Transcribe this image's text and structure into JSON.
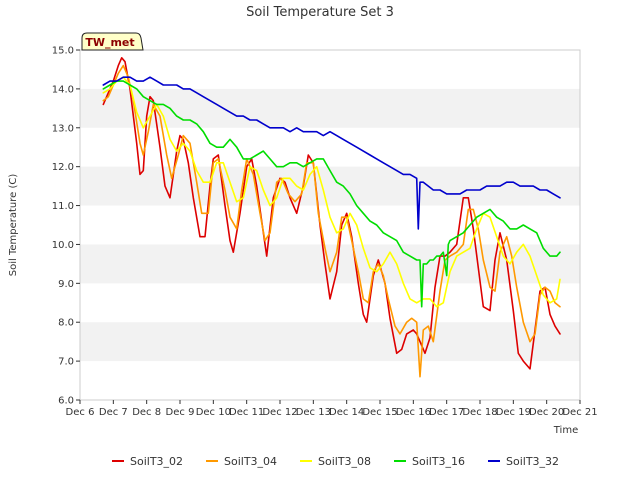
{
  "chart_data": {
    "type": "line",
    "title": "Soil Temperature Set 3",
    "badge": "TW_met",
    "xlabel": "Time",
    "ylabel": "Soil Temperature (C)",
    "xlim": [
      6,
      21
    ],
    "ylim": [
      6.0,
      15.0
    ],
    "x_ticks": [
      6,
      7,
      8,
      9,
      10,
      11,
      12,
      13,
      14,
      15,
      16,
      17,
      18,
      19,
      20,
      21
    ],
    "x_tick_labels": [
      "Dec 6",
      "Dec 7",
      "Dec 8",
      "Dec 9",
      "Dec 10",
      "Dec 11",
      "Dec 12",
      "Dec 13",
      "Dec 14",
      "Dec 15",
      "Dec 16",
      "Dec 17",
      "Dec 18",
      "Dec 19",
      "Dec 20",
      "Dec 21"
    ],
    "y_ticks": [
      6.0,
      7.0,
      8.0,
      9.0,
      10.0,
      11.0,
      12.0,
      13.0,
      14.0,
      15.0
    ],
    "y_tick_labels": [
      "6.0",
      "7.0",
      "8.0",
      "9.0",
      "10.0",
      "11.0",
      "12.0",
      "13.0",
      "14.0",
      "15.0"
    ],
    "grid": "horizontal bands",
    "legend_position": "bottom",
    "series": [
      {
        "name": "SoilT3_02",
        "color": "#dd0000",
        "x": [
          6.7,
          6.85,
          7.0,
          7.15,
          7.25,
          7.35,
          7.5,
          7.7,
          7.8,
          7.9,
          8.0,
          8.1,
          8.2,
          8.4,
          8.55,
          8.7,
          8.9,
          9.0,
          9.1,
          9.25,
          9.4,
          9.6,
          9.75,
          9.9,
          10.0,
          10.15,
          10.35,
          10.5,
          10.6,
          10.8,
          11.0,
          11.15,
          11.3,
          11.45,
          11.6,
          11.8,
          12.0,
          12.15,
          12.3,
          12.5,
          12.7,
          12.85,
          13.0,
          13.2,
          13.35,
          13.5,
          13.7,
          13.85,
          14.0,
          14.15,
          14.35,
          14.5,
          14.6,
          14.8,
          14.95,
          15.15,
          15.3,
          15.5,
          15.65,
          15.8,
          16.0,
          16.1,
          16.25,
          16.35,
          16.5,
          16.65,
          16.8,
          16.95,
          17.1,
          17.3,
          17.5,
          17.65,
          17.8,
          17.95,
          18.1,
          18.3,
          18.45,
          18.6,
          18.8,
          19.0,
          19.15,
          19.3,
          19.5,
          19.65,
          19.8,
          19.95,
          20.1,
          20.25,
          20.4
        ],
        "y": [
          13.6,
          13.9,
          14.2,
          14.6,
          14.8,
          14.7,
          14.0,
          12.6,
          11.8,
          11.9,
          13.3,
          13.8,
          13.7,
          12.5,
          11.5,
          11.2,
          12.4,
          12.8,
          12.7,
          12.1,
          11.2,
          10.2,
          10.2,
          11.5,
          12.2,
          12.3,
          11.0,
          10.1,
          9.8,
          10.8,
          12.0,
          12.2,
          11.5,
          10.6,
          9.7,
          11.2,
          11.7,
          11.6,
          11.2,
          10.8,
          11.5,
          12.3,
          12.1,
          10.5,
          9.5,
          8.6,
          9.3,
          10.5,
          10.8,
          10.2,
          9.0,
          8.2,
          8.0,
          9.2,
          9.6,
          9.0,
          8.1,
          7.2,
          7.3,
          7.7,
          7.8,
          7.7,
          7.4,
          7.2,
          7.6,
          8.9,
          9.7,
          9.7,
          9.8,
          10.0,
          11.2,
          11.2,
          10.4,
          9.4,
          8.4,
          8.3,
          9.6,
          10.3,
          9.6,
          8.3,
          7.2,
          7.0,
          6.8,
          7.8,
          8.8,
          8.9,
          8.2,
          7.9,
          7.7
        ]
      },
      {
        "name": "SoilT3_04",
        "color": "#ff9900",
        "x": [
          6.7,
          6.85,
          7.0,
          7.15,
          7.3,
          7.45,
          7.6,
          7.8,
          7.9,
          8.05,
          8.2,
          8.4,
          8.6,
          8.75,
          8.95,
          9.1,
          9.3,
          9.5,
          9.65,
          9.85,
          10.0,
          10.15,
          10.35,
          10.5,
          10.7,
          10.85,
          11.0,
          11.2,
          11.4,
          11.55,
          11.7,
          11.9,
          12.05,
          12.25,
          12.45,
          12.65,
          12.8,
          13.0,
          13.15,
          13.35,
          13.5,
          13.7,
          13.85,
          14.0,
          14.15,
          14.35,
          14.5,
          14.65,
          14.8,
          14.95,
          15.1,
          15.25,
          15.45,
          15.6,
          15.8,
          15.95,
          16.1,
          16.2,
          16.3,
          16.45,
          16.6,
          16.8,
          16.95,
          17.1,
          17.3,
          17.5,
          17.65,
          17.8,
          17.95,
          18.1,
          18.3,
          18.45,
          18.6,
          18.8,
          18.95,
          19.1,
          19.3,
          19.5,
          19.65,
          19.8,
          19.95,
          20.1,
          20.25,
          20.4
        ],
        "y": [
          13.7,
          13.8,
          14.1,
          14.4,
          14.6,
          14.3,
          13.7,
          12.6,
          12.3,
          12.9,
          13.6,
          13.3,
          12.3,
          11.7,
          12.3,
          12.8,
          12.6,
          11.6,
          10.8,
          10.8,
          12.1,
          12.2,
          11.4,
          10.7,
          10.4,
          11.4,
          12.2,
          11.8,
          10.8,
          10.1,
          10.3,
          11.6,
          11.7,
          11.3,
          11.1,
          11.3,
          12.1,
          12.1,
          10.8,
          9.9,
          9.3,
          9.8,
          10.7,
          10.7,
          10.1,
          9.3,
          8.6,
          8.5,
          9.3,
          9.5,
          9.2,
          8.6,
          7.9,
          7.7,
          8.0,
          8.1,
          8.0,
          6.6,
          7.8,
          7.9,
          7.5,
          8.8,
          9.6,
          9.7,
          9.8,
          10.0,
          10.9,
          10.9,
          10.4,
          9.6,
          8.9,
          8.8,
          9.8,
          10.2,
          9.7,
          8.9,
          8.0,
          7.5,
          7.7,
          8.7,
          8.9,
          8.8,
          8.5,
          8.4
        ]
      },
      {
        "name": "SoilT3_08",
        "color": "#ffff00",
        "x": [
          6.7,
          6.9,
          7.1,
          7.3,
          7.5,
          7.7,
          7.9,
          8.1,
          8.3,
          8.5,
          8.7,
          8.9,
          9.1,
          9.3,
          9.5,
          9.7,
          9.9,
          10.1,
          10.3,
          10.5,
          10.7,
          10.9,
          11.1,
          11.3,
          11.5,
          11.7,
          11.9,
          12.1,
          12.3,
          12.5,
          12.7,
          12.9,
          13.1,
          13.3,
          13.5,
          13.7,
          13.9,
          14.1,
          14.3,
          14.5,
          14.7,
          14.9,
          15.1,
          15.3,
          15.5,
          15.7,
          15.9,
          16.1,
          16.3,
          16.5,
          16.7,
          16.9,
          17.1,
          17.3,
          17.5,
          17.7,
          17.9,
          18.1,
          18.3,
          18.5,
          18.7,
          18.9,
          19.1,
          19.3,
          19.5,
          19.7,
          19.9,
          20.1,
          20.3,
          20.4
        ],
        "y": [
          13.9,
          14.0,
          14.2,
          14.3,
          14.1,
          13.4,
          13.0,
          13.3,
          13.6,
          13.3,
          12.7,
          12.4,
          12.6,
          12.4,
          11.9,
          11.6,
          11.6,
          12.1,
          12.1,
          11.6,
          11.1,
          11.2,
          12.0,
          11.9,
          11.4,
          11.0,
          11.2,
          11.7,
          11.7,
          11.5,
          11.4,
          11.8,
          12.0,
          11.4,
          10.7,
          10.3,
          10.4,
          10.8,
          10.5,
          9.9,
          9.4,
          9.3,
          9.5,
          9.8,
          9.5,
          9.0,
          8.6,
          8.5,
          8.6,
          8.6,
          8.4,
          8.5,
          9.3,
          9.7,
          9.8,
          9.9,
          10.4,
          10.8,
          10.7,
          10.2,
          9.7,
          9.5,
          9.8,
          10.0,
          9.7,
          9.2,
          8.7,
          8.5,
          8.6,
          9.1
        ]
      },
      {
        "name": "SoilT3_16",
        "color": "#00dd00",
        "x": [
          6.7,
          6.9,
          7.1,
          7.3,
          7.5,
          7.7,
          7.9,
          8.1,
          8.3,
          8.5,
          8.7,
          8.9,
          9.1,
          9.3,
          9.5,
          9.7,
          9.9,
          10.1,
          10.3,
          10.5,
          10.7,
          10.9,
          11.1,
          11.3,
          11.5,
          11.7,
          11.9,
          12.1,
          12.3,
          12.5,
          12.7,
          12.9,
          13.1,
          13.3,
          13.5,
          13.7,
          13.9,
          14.1,
          14.3,
          14.5,
          14.7,
          14.9,
          15.1,
          15.3,
          15.5,
          15.7,
          15.9,
          16.1,
          16.2,
          16.25,
          16.3,
          16.4,
          16.5,
          16.6,
          16.7,
          16.8,
          16.9,
          17.0,
          17.05,
          17.1,
          17.3,
          17.5,
          17.7,
          17.9,
          18.1,
          18.3,
          18.5,
          18.7,
          18.9,
          19.1,
          19.3,
          19.5,
          19.7,
          19.9,
          20.1,
          20.3,
          20.4
        ],
        "y": [
          14.0,
          14.1,
          14.2,
          14.2,
          14.1,
          14.0,
          13.8,
          13.7,
          13.6,
          13.6,
          13.5,
          13.3,
          13.2,
          13.2,
          13.1,
          12.9,
          12.6,
          12.5,
          12.5,
          12.7,
          12.5,
          12.2,
          12.2,
          12.3,
          12.4,
          12.2,
          12.0,
          12.0,
          12.1,
          12.1,
          12.0,
          12.1,
          12.2,
          12.2,
          11.9,
          11.6,
          11.5,
          11.3,
          11.0,
          10.8,
          10.6,
          10.5,
          10.3,
          10.2,
          10.1,
          9.8,
          9.7,
          9.6,
          9.6,
          8.4,
          9.5,
          9.5,
          9.6,
          9.6,
          9.7,
          9.7,
          9.8,
          9.2,
          10.0,
          10.1,
          10.2,
          10.3,
          10.5,
          10.7,
          10.8,
          10.9,
          10.7,
          10.6,
          10.4,
          10.4,
          10.5,
          10.4,
          10.3,
          9.9,
          9.7,
          9.7,
          9.8
        ]
      },
      {
        "name": "SoilT3_32",
        "color": "#0000cc",
        "x": [
          6.7,
          6.9,
          7.1,
          7.3,
          7.5,
          7.7,
          7.9,
          8.1,
          8.3,
          8.5,
          8.7,
          8.9,
          9.1,
          9.3,
          9.5,
          9.7,
          9.9,
          10.1,
          10.3,
          10.5,
          10.7,
          10.9,
          11.1,
          11.3,
          11.5,
          11.7,
          11.9,
          12.1,
          12.3,
          12.5,
          12.7,
          12.9,
          13.1,
          13.3,
          13.5,
          13.7,
          13.9,
          14.1,
          14.3,
          14.5,
          14.7,
          14.9,
          15.1,
          15.3,
          15.5,
          15.7,
          15.9,
          16.1,
          16.15,
          16.2,
          16.25,
          16.3,
          16.45,
          16.6,
          16.8,
          17.0,
          17.2,
          17.4,
          17.6,
          17.8,
          18.0,
          18.2,
          18.4,
          18.6,
          18.8,
          19.0,
          19.2,
          19.4,
          19.6,
          19.8,
          20.0,
          20.2,
          20.4
        ],
        "y": [
          14.1,
          14.2,
          14.2,
          14.3,
          14.3,
          14.2,
          14.2,
          14.3,
          14.2,
          14.1,
          14.1,
          14.1,
          14.0,
          14.0,
          13.9,
          13.8,
          13.7,
          13.6,
          13.5,
          13.4,
          13.3,
          13.3,
          13.2,
          13.2,
          13.1,
          13.0,
          13.0,
          13.0,
          12.9,
          13.0,
          12.9,
          12.9,
          12.9,
          12.8,
          12.9,
          12.8,
          12.7,
          12.6,
          12.5,
          12.4,
          12.3,
          12.2,
          12.1,
          12.0,
          11.9,
          11.8,
          11.8,
          11.7,
          10.4,
          11.6,
          11.6,
          11.6,
          11.5,
          11.4,
          11.4,
          11.3,
          11.3,
          11.3,
          11.4,
          11.4,
          11.4,
          11.5,
          11.5,
          11.5,
          11.6,
          11.6,
          11.5,
          11.5,
          11.5,
          11.4,
          11.4,
          11.3,
          11.2
        ]
      }
    ]
  }
}
